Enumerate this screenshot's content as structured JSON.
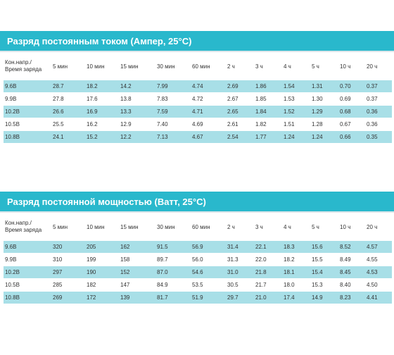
{
  "current_table": {
    "title": "Разряд постоянным током (Ампер, 25°C)",
    "header_line1": "Кон.напр./",
    "header_line2": "Время заряда",
    "columns": [
      "5 мин",
      "10 мин",
      "15 мин",
      "30 мин",
      "60 мин",
      "2 ч",
      "3 ч",
      "4 ч",
      "5 ч",
      "10 ч",
      "20 ч"
    ],
    "rows": [
      {
        "label": "9.6В",
        "values": [
          "28.7",
          "18.2",
          "14.2",
          "7.99",
          "4.74",
          "2.69",
          "1.86",
          "1.54",
          "1.31",
          "0.70",
          "0.37"
        ]
      },
      {
        "label": "9.9В",
        "values": [
          "27.8",
          "17.6",
          "13.8",
          "7.83",
          "4.72",
          "2.67",
          "1.85",
          "1.53",
          "1.30",
          "0.69",
          "0.37"
        ]
      },
      {
        "label": "10.2В",
        "values": [
          "26.6",
          "16.9",
          "13.3",
          "7.59",
          "4.71",
          "2.65",
          "1.84",
          "1.52",
          "1.29",
          "0.68",
          "0.36"
        ]
      },
      {
        "label": "10.5В",
        "values": [
          "25.5",
          "16.2",
          "12.9",
          "7.40",
          "4.69",
          "2.61",
          "1.82",
          "1.51",
          "1.28",
          "0.67",
          "0.36"
        ]
      },
      {
        "label": "10.8В",
        "values": [
          "24.1",
          "15.2",
          "12.2",
          "7.13",
          "4.67",
          "2.54",
          "1.77",
          "1.24",
          "1.24",
          "0.66",
          "0.35"
        ]
      }
    ]
  },
  "power_table": {
    "title": "Разряд постоянной мощностью (Ватт, 25°C)",
    "header_line1": "Кон.напр./",
    "header_line2": "Время заряда",
    "columns": [
      "5 мин",
      "10 мин",
      "15 мин",
      "30 мин",
      "60 мин",
      "2 ч",
      "3 ч",
      "4 ч",
      "5 ч",
      "10 ч",
      "20 ч"
    ],
    "rows": [
      {
        "label": "9.6В",
        "values": [
          "320",
          "205",
          "162",
          "91.5",
          "56.9",
          "31.4",
          "22.1",
          "18.3",
          "15.6",
          "8.52",
          "4.57"
        ]
      },
      {
        "label": "9.9В",
        "values": [
          "310",
          "199",
          "158",
          "89.7",
          "56.0",
          "31.3",
          "22.0",
          "18.2",
          "15.5",
          "8.49",
          "4.55"
        ]
      },
      {
        "label": "10.2В",
        "values": [
          "297",
          "190",
          "152",
          "87.0",
          "54.6",
          "31.0",
          "21.8",
          "18.1",
          "15.4",
          "8.45",
          "4.53"
        ]
      },
      {
        "label": "10.5В",
        "values": [
          "285",
          "182",
          "147",
          "84.9",
          "53.5",
          "30.5",
          "21.7",
          "18.0",
          "15.3",
          "8.40",
          "4.50"
        ]
      },
      {
        "label": "10.8В",
        "values": [
          "269",
          "172",
          "139",
          "81.7",
          "51.9",
          "29.7",
          "21.0",
          "17.4",
          "14.9",
          "8.23",
          "4.41"
        ]
      }
    ]
  },
  "colors": {
    "title_bar": "#29b8cc",
    "stripe": "#a8dfe7"
  }
}
